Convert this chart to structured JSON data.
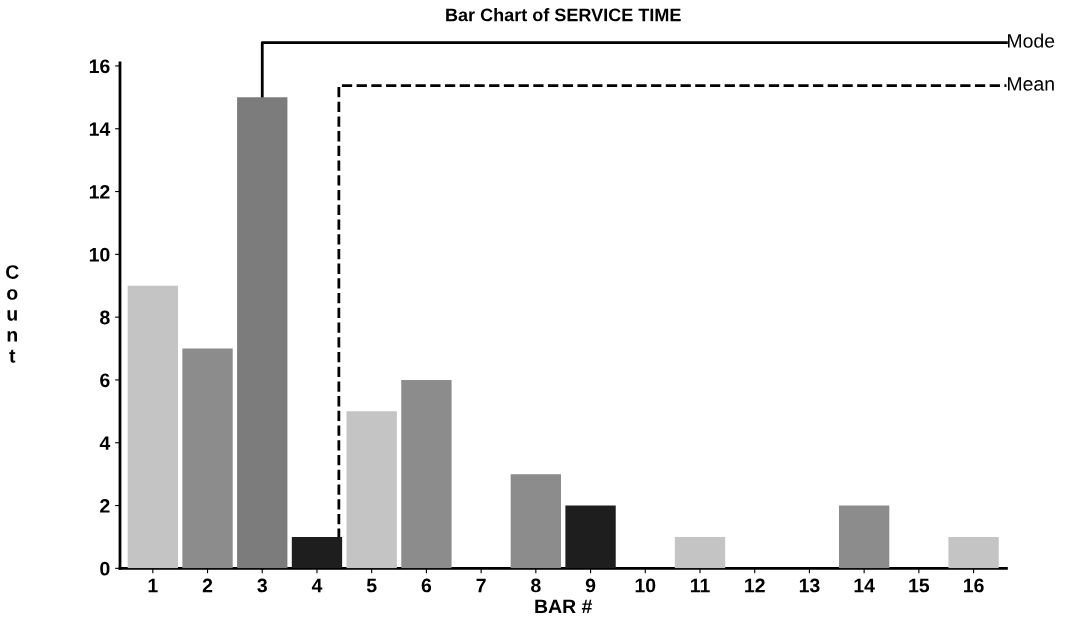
{
  "chart_data": {
    "type": "bar",
    "title": "Bar Chart of SERVICE TIME",
    "xlabel": "BAR #",
    "ylabel": "Count",
    "x": [
      1,
      2,
      3,
      4,
      5,
      6,
      7,
      8,
      9,
      10,
      11,
      12,
      13,
      14,
      15,
      16
    ],
    "values": [
      9,
      7,
      15,
      1,
      5,
      6,
      0,
      3,
      2,
      0,
      1,
      0,
      0,
      2,
      0,
      1
    ],
    "colors": [
      "#c4c4c4",
      "#8c8c8c",
      "#7c7c7c",
      "#1e1e1e",
      "#c4c4c4",
      "#8c8c8c",
      "#8c8c8c",
      "#8c8c8c",
      "#1e1e1e",
      "#8c8c8c",
      "#c4c4c4",
      "#8c8c8c",
      "#8c8c8c",
      "#8c8c8c",
      "#8c8c8c",
      "#c4c4c4"
    ],
    "xlim": [
      0.4,
      16.6
    ],
    "xticks": [
      1,
      2,
      3,
      4,
      5,
      6,
      7,
      8,
      9,
      10,
      11,
      12,
      13,
      14,
      15,
      16
    ],
    "ylim": [
      0,
      16.1
    ],
    "yticks": [
      0,
      2,
      4,
      6,
      8,
      10,
      12,
      14,
      16
    ],
    "ref_lines": [
      {
        "axis": "x",
        "value": 3,
        "label": "Mode",
        "color": "#000000",
        "line_style": "solid"
      },
      {
        "axis": "x",
        "value": 4.4,
        "label": "Mean",
        "color": "#000000",
        "line_style": "dashed"
      }
    ]
  }
}
